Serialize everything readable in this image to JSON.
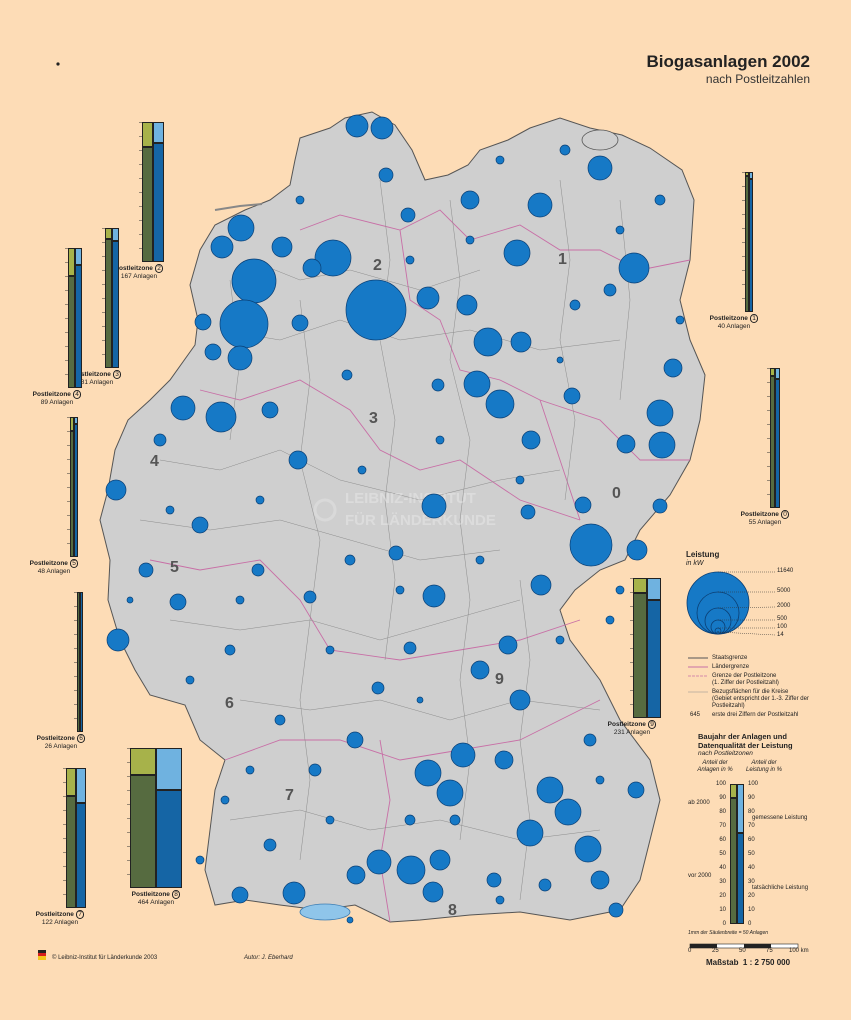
{
  "header": {
    "title": "Biogasanlagen 2002",
    "subtitle": "nach Postleitzahlen"
  },
  "map": {
    "zone_digits": [
      "0",
      "1",
      "2",
      "3",
      "4",
      "5",
      "6",
      "7",
      "8",
      "9"
    ],
    "watermark_line1": "LEIBNIZ-INSTITUT",
    "watermark_line2": "FÜR LÄNDERKUNDE",
    "colors": {
      "background": "#fddcb6",
      "land": "#cfcfcf",
      "circle": "#1679c6",
      "circle_stroke": "#0a3f75",
      "zone_border": "#c86fa6",
      "water": "#8fc5ea"
    }
  },
  "postal_zones": [
    {
      "name": "Postleitzone",
      "digit": "0",
      "count": "55 Anlagen",
      "ab2000_plants": 0.06,
      "bis2000_plants": 0.94,
      "measured_power": 0.08,
      "actual_power": 0.92
    },
    {
      "name": "Postleitzone",
      "digit": "1",
      "count": "40 Anlagen",
      "ab2000_plants": 0.03,
      "bis2000_plants": 0.97,
      "measured_power": 0.05,
      "actual_power": 0.95
    },
    {
      "name": "Postleitzone",
      "digit": "2",
      "count": "167 Anlagen",
      "ab2000_plants": 0.18,
      "bis2000_plants": 0.82,
      "measured_power": 0.15,
      "actual_power": 0.85
    },
    {
      "name": "Postleitzone",
      "digit": "3",
      "count": "81 Anlagen",
      "ab2000_plants": 0.08,
      "bis2000_plants": 0.92,
      "measured_power": 0.09,
      "actual_power": 0.91
    },
    {
      "name": "Postleitzone",
      "digit": "4",
      "count": "89 Anlagen",
      "ab2000_plants": 0.2,
      "bis2000_plants": 0.8,
      "measured_power": 0.12,
      "actual_power": 0.88
    },
    {
      "name": "Postleitzone",
      "digit": "5",
      "count": "48 Anlagen",
      "ab2000_plants": 0.1,
      "bis2000_plants": 0.9,
      "measured_power": 0.05,
      "actual_power": 0.95
    },
    {
      "name": "Postleitzone",
      "digit": "6",
      "count": "26 Anlagen",
      "ab2000_plants": 0.0,
      "bis2000_plants": 1.0,
      "measured_power": 0.0,
      "actual_power": 1.0
    },
    {
      "name": "Postleitzone",
      "digit": "7",
      "count": "122 Anlagen",
      "ab2000_plants": 0.2,
      "bis2000_plants": 0.8,
      "measured_power": 0.25,
      "actual_power": 0.75
    },
    {
      "name": "Postleitzone",
      "digit": "8",
      "count": "464 Anlagen",
      "ab2000_plants": 0.19,
      "bis2000_plants": 0.81,
      "measured_power": 0.3,
      "actual_power": 0.7
    },
    {
      "name": "Postleitzone",
      "digit": "9",
      "count": "231 Anlagen",
      "ab2000_plants": 0.11,
      "bis2000_plants": 0.89,
      "measured_power": 0.16,
      "actual_power": 0.84
    }
  ],
  "legend_power": {
    "title": "Leistung",
    "unit": "in kW",
    "values": [
      "11640",
      "5000",
      "2000",
      "500",
      "100",
      "14"
    ]
  },
  "legend_lines": [
    {
      "label": "Staatsgrenze"
    },
    {
      "label": "Ländergrenze"
    },
    {
      "label": "Grenze der Postleitzone",
      "note": "(1. Ziffer der Postleitzahl)"
    },
    {
      "label": "Bezugsflächen für die Kreise",
      "note": "(Gebiet entspricht der 1.-3. Ziffer der Postleitzahl)"
    },
    {
      "sample": "645",
      "label": "erste drei Ziffern der Postleitzahl"
    }
  ],
  "legend_year": {
    "title_line1": "Baujahr der Anlagen und",
    "title_line2": "Datenqualität der Leistung",
    "subtitle": "nach Postleitzonen",
    "left_header": "Anteil der Anlagen in %",
    "right_header": "Anteil der Leistung in %",
    "ticks": [
      "100",
      "90",
      "80",
      "70",
      "60",
      "50",
      "40",
      "30",
      "20",
      "10",
      "0"
    ],
    "label_ab2000": "ab 2000",
    "label_vor2000": "vor 2000",
    "label_measured": "gemessene Leistung",
    "label_actual": "tatsächliche Leistung",
    "note": "1mm der Säulenbreite = 50 Anlagen"
  },
  "scale": {
    "ticks": [
      "0",
      "25",
      "50",
      "75",
      "100 km"
    ],
    "label": "Maßstab",
    "ratio": "1 : 2 750 000"
  },
  "footer": {
    "copyright": "© Leibniz-Institut für Länderkunde 2003",
    "author": "Autor:  J. Eberhard"
  }
}
